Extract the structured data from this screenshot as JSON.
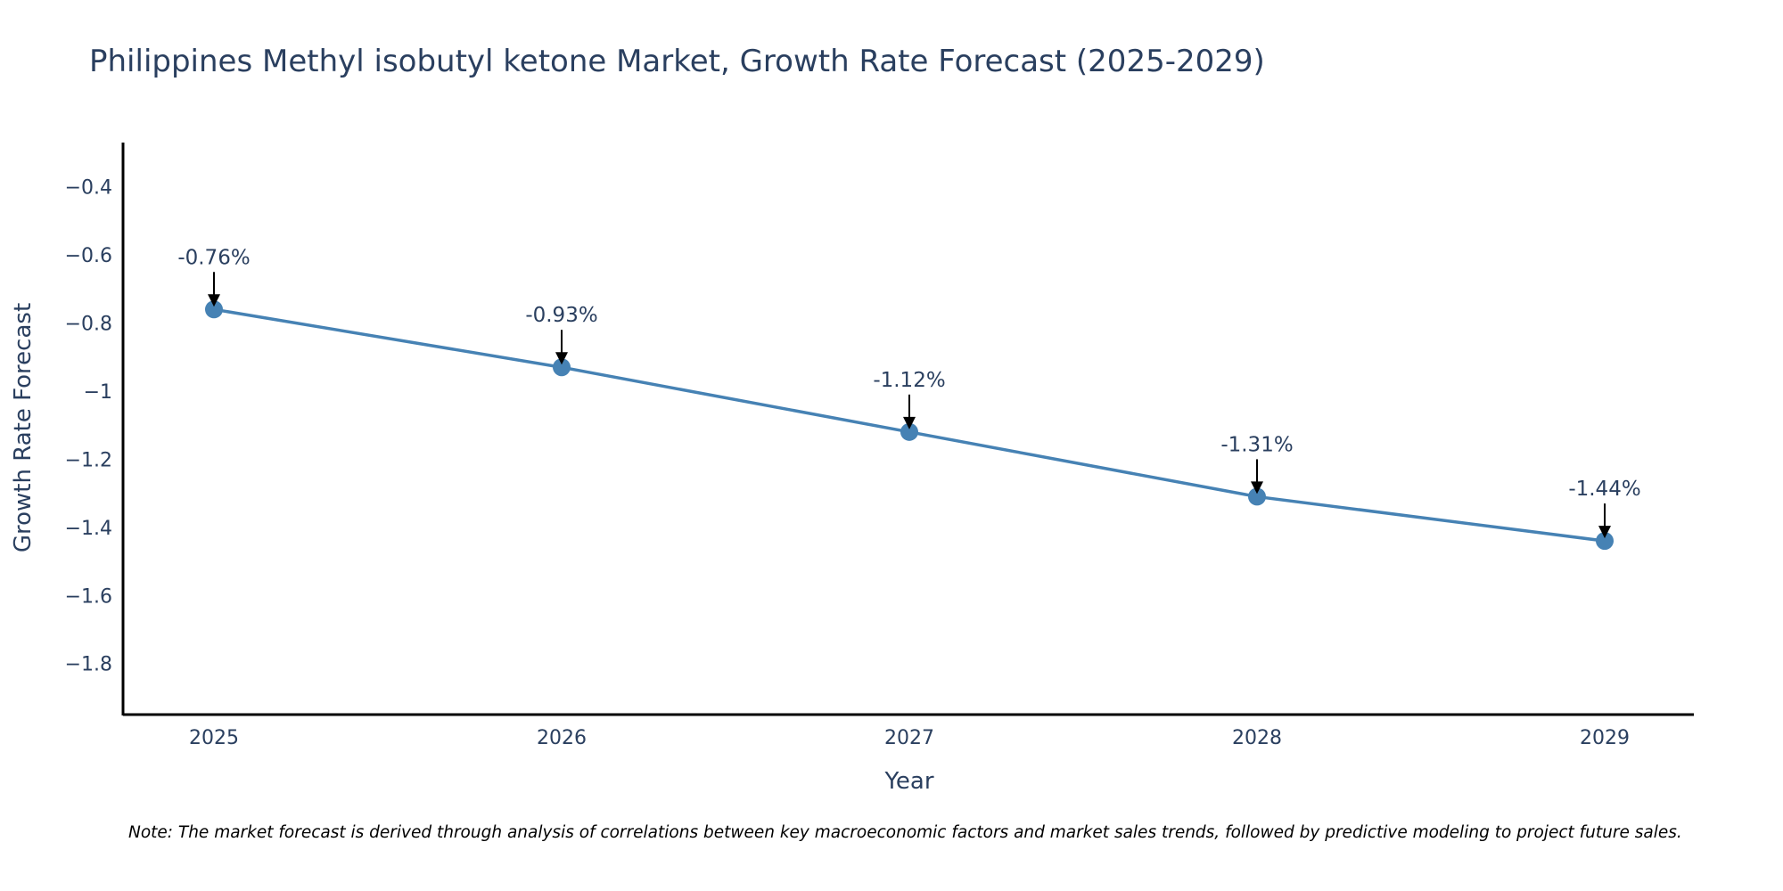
{
  "chart_data": {
    "type": "line",
    "title": "Philippines Methyl isobutyl ketone Market, Growth Rate Forecast (2025-2029)",
    "xlabel": "Year",
    "ylabel": "Growth Rate Forecast",
    "categories": [
      "2025",
      "2026",
      "2027",
      "2028",
      "2029"
    ],
    "series": [
      {
        "name": "Growth Rate Forecast",
        "values": [
          -0.76,
          -0.93,
          -1.12,
          -1.31,
          -1.44
        ],
        "labels": [
          "-0.76%",
          "-0.93%",
          "-1.12%",
          "-1.31%",
          "-1.44%"
        ]
      }
    ],
    "ylim": [
      -1.95,
      -0.27
    ],
    "yticks": [
      -0.4,
      -0.6,
      -0.8,
      -1,
      -1.2,
      -1.4,
      -1.6,
      -1.8
    ],
    "ytick_labels": [
      "−0.4",
      "−0.6",
      "−0.8",
      "−1",
      "−1.2",
      "−1.4",
      "−1.6",
      "−1.8"
    ],
    "grid": false,
    "colors": {
      "line": "#4682b4",
      "marker": "#4682b4",
      "arrow": "#000000",
      "axis": "#000000",
      "text": "#2a3f5f"
    },
    "note": "Note: The market forecast is derived through analysis of correlations between key macroeconomic factors and market sales trends, followed by predictive modeling to project future sales."
  }
}
